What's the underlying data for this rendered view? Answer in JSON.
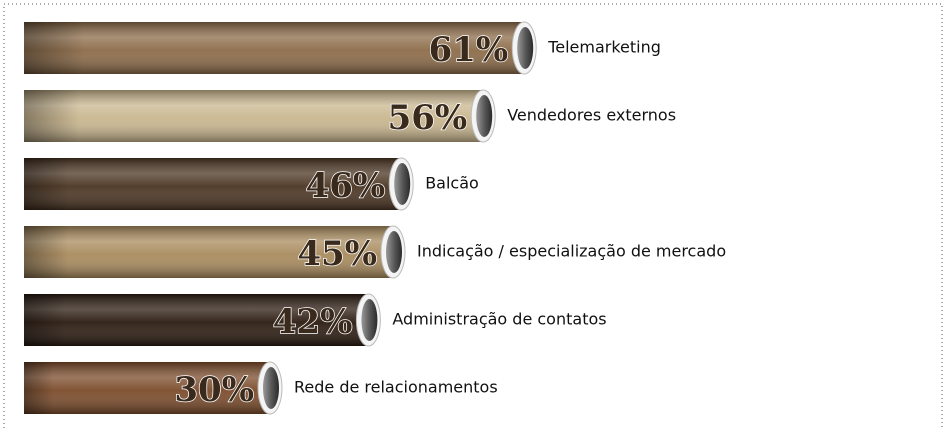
{
  "chart_data": {
    "type": "bar",
    "orientation": "horizontal",
    "categories": [
      "Telemarketing",
      "Vendedores externos",
      "Balcão",
      "Indicação / especialização de mercado",
      "Administração de contatos",
      "Rede de relacionamentos"
    ],
    "values": [
      61,
      56,
      46,
      45,
      42,
      30
    ],
    "value_labels": [
      "61%",
      "56%",
      "46%",
      "45%",
      "42%",
      "30%"
    ],
    "colors": [
      "#8c6b48",
      "#c9b68e",
      "#4b3522",
      "#a98b5d",
      "#2b1b10",
      "#7b4b2a"
    ]
  }
}
